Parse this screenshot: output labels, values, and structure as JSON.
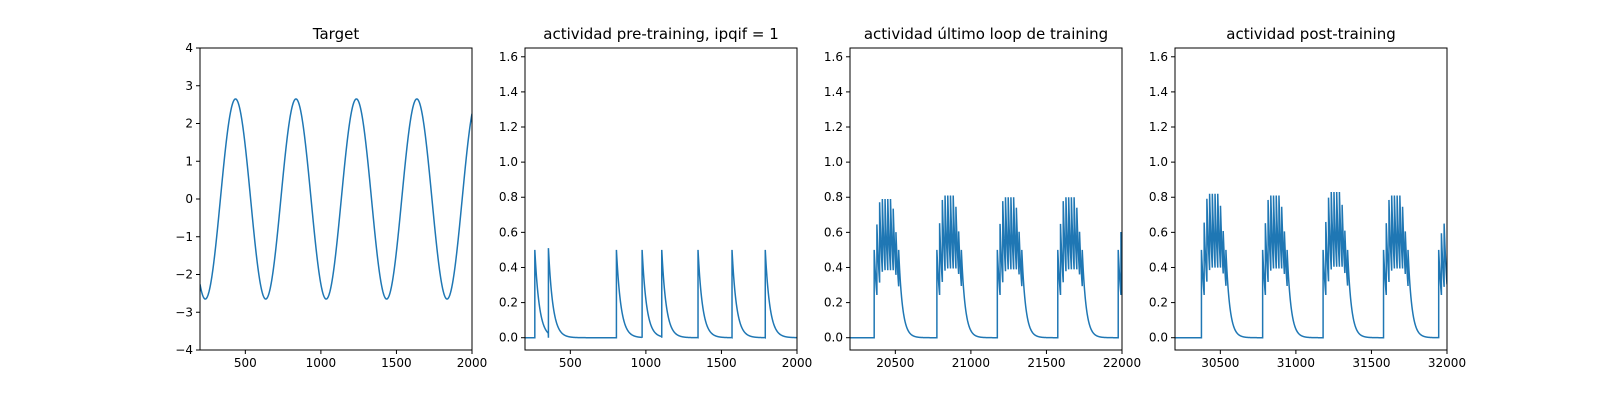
{
  "chart_data": [
    {
      "type": "line",
      "title": "Target",
      "xlim": [
        200,
        2000
      ],
      "ylim": [
        -4,
        4
      ],
      "xticks": [
        500,
        1000,
        1500,
        2000
      ],
      "yticks": [
        -4,
        -3,
        -2,
        -1,
        0,
        1,
        2,
        3,
        4
      ],
      "ytick_labels": [
        "−4",
        "−3",
        "−2",
        "−1",
        "0",
        "1",
        "2",
        "3",
        "4"
      ],
      "line_color": "#1f77b4",
      "series": [
        {
          "signal": "sine",
          "amplitude": 2.65,
          "period": 400,
          "peaks_at": [
            435,
            835,
            1235,
            1635
          ],
          "x_range": [
            200,
            2000
          ]
        }
      ]
    },
    {
      "type": "line",
      "title": "actividad pre-training, ipqif = 1",
      "xlim": [
        200,
        2000
      ],
      "ylim": [
        -0.07,
        1.65
      ],
      "xticks": [
        500,
        1000,
        1500,
        2000
      ],
      "yticks": [
        0.0,
        0.2,
        0.4,
        0.6,
        0.8,
        1.0,
        1.2,
        1.4,
        1.6
      ],
      "ytick_labels": [
        "0.0",
        "0.2",
        "0.4",
        "0.6",
        "0.8",
        "1.0",
        "1.2",
        "1.4",
        "1.6"
      ],
      "line_color": "#1f77b4",
      "series": [
        {
          "signal": "spikes",
          "spike_x": [
            265,
            355,
            805,
            975,
            1105,
            1345,
            1570,
            1790
          ],
          "spike_y": [
            0.5,
            0.51,
            0.5,
            0.5,
            0.5,
            0.5,
            0.5,
            0.5
          ],
          "decay": 30,
          "x_range": [
            200,
            2000
          ]
        }
      ]
    },
    {
      "type": "line",
      "title": "actividad último loop de training",
      "xlim": [
        20200,
        22000
      ],
      "ylim": [
        -0.07,
        1.65
      ],
      "xticks": [
        20500,
        21000,
        21500,
        22000
      ],
      "yticks": [
        0.0,
        0.2,
        0.4,
        0.6,
        0.8,
        1.0,
        1.2,
        1.4,
        1.6
      ],
      "ytick_labels": [
        "0.0",
        "0.2",
        "0.4",
        "0.6",
        "0.8",
        "1.0",
        "1.2",
        "1.4",
        "1.6"
      ],
      "line_color": "#1f77b4",
      "series": [
        {
          "signal": "bursts",
          "burst_starts": [
            20360,
            20775,
            21175,
            21575,
            21975
          ],
          "burst_peak": [
            0.79,
            0.81,
            0.8,
            0.8,
            0.67
          ],
          "burst_count": [
            10,
            10,
            10,
            10,
            2
          ],
          "spike_interval": 18,
          "decay": 25,
          "x_range": [
            20200,
            22000
          ]
        }
      ]
    },
    {
      "type": "line",
      "title": "actividad post-training",
      "xlim": [
        30200,
        32000
      ],
      "ylim": [
        -0.07,
        1.65
      ],
      "xticks": [
        30500,
        31000,
        31500,
        32000
      ],
      "yticks": [
        0.0,
        0.2,
        0.4,
        0.6,
        0.8,
        1.0,
        1.2,
        1.4,
        1.6
      ],
      "ytick_labels": [
        "0.0",
        "0.2",
        "0.4",
        "0.6",
        "0.8",
        "1.0",
        "1.2",
        "1.4",
        "1.6"
      ],
      "line_color": "#1f77b4",
      "series": [
        {
          "signal": "bursts",
          "burst_starts": [
            30375,
            30780,
            31180,
            31580,
            31945
          ],
          "burst_peak": [
            0.82,
            0.81,
            0.83,
            0.81,
            0.65
          ],
          "burst_count": [
            10,
            10,
            10,
            10,
            3
          ],
          "spike_interval": 18,
          "decay": 25,
          "x_range": [
            30200,
            32000
          ]
        }
      ]
    }
  ]
}
